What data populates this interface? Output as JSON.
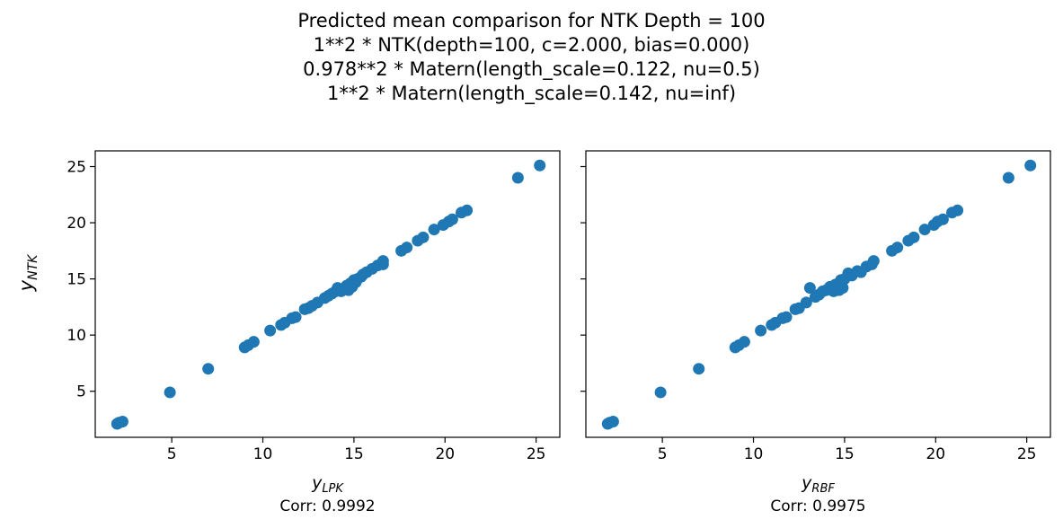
{
  "figure": {
    "title_lines": [
      "Predicted mean comparison for NTK Depth = 100",
      "1**2 * NTK(depth=100, c=2.000, bias=0.000)",
      "0.978**2 * Matern(length_scale=0.122, nu=0.5)",
      "1**2 * Matern(length_scale=0.142, nu=inf)"
    ],
    "ylabel_base": "y",
    "ylabel_sub": "NTK"
  },
  "chart_data": [
    {
      "type": "scatter",
      "xlabel_base": "y",
      "xlabel_sub": "LPK",
      "corr_label": "Corr: 0.9992",
      "xlim": [
        0.8,
        26.3
      ],
      "ylim": [
        0.9,
        26.4
      ],
      "xticks": [
        5,
        10,
        15,
        20,
        25
      ],
      "yticks": [
        5,
        10,
        15,
        20,
        25
      ],
      "color": "#1f77b4",
      "points": [
        [
          2.0,
          2.1
        ],
        [
          2.1,
          2.2
        ],
        [
          2.3,
          2.3
        ],
        [
          4.9,
          4.9
        ],
        [
          7.0,
          7.0
        ],
        [
          9.0,
          8.9
        ],
        [
          9.2,
          9.1
        ],
        [
          9.5,
          9.4
        ],
        [
          10.4,
          10.4
        ],
        [
          11.0,
          10.9
        ],
        [
          11.2,
          11.1
        ],
        [
          11.6,
          11.5
        ],
        [
          11.8,
          11.6
        ],
        [
          12.3,
          12.3
        ],
        [
          12.5,
          12.4
        ],
        [
          12.7,
          12.6
        ],
        [
          13.0,
          12.9
        ],
        [
          13.4,
          13.3
        ],
        [
          13.6,
          13.5
        ],
        [
          13.8,
          13.7
        ],
        [
          14.0,
          13.9
        ],
        [
          14.1,
          14.2
        ],
        [
          14.3,
          13.9
        ],
        [
          14.4,
          14.1
        ],
        [
          14.6,
          14.4
        ],
        [
          14.7,
          14.0
        ],
        [
          14.8,
          14.6
        ],
        [
          14.9,
          14.3
        ],
        [
          15.0,
          14.9
        ],
        [
          15.1,
          14.7
        ],
        [
          15.2,
          15.0
        ],
        [
          15.4,
          15.2
        ],
        [
          15.5,
          15.4
        ],
        [
          15.7,
          15.6
        ],
        [
          16.0,
          15.9
        ],
        [
          16.3,
          16.2
        ],
        [
          16.6,
          16.3
        ],
        [
          16.6,
          16.6
        ],
        [
          17.6,
          17.5
        ],
        [
          17.9,
          17.8
        ],
        [
          18.5,
          18.4
        ],
        [
          18.8,
          18.7
        ],
        [
          19.4,
          19.4
        ],
        [
          19.9,
          19.8
        ],
        [
          20.2,
          20.1
        ],
        [
          20.4,
          20.3
        ],
        [
          20.9,
          20.9
        ],
        [
          21.2,
          21.1
        ],
        [
          24.0,
          24.0
        ],
        [
          25.2,
          25.1
        ]
      ]
    },
    {
      "type": "scatter",
      "xlabel_base": "y",
      "xlabel_sub": "RBF",
      "corr_label": "Corr: 0.9975",
      "xlim": [
        0.8,
        26.3
      ],
      "ylim": [
        0.9,
        26.4
      ],
      "xticks": [
        5,
        10,
        15,
        20,
        25
      ],
      "yticks": [
        5,
        10,
        15,
        20,
        25
      ],
      "color": "#1f77b4",
      "points": [
        [
          2.0,
          2.1
        ],
        [
          2.1,
          2.2
        ],
        [
          2.3,
          2.3
        ],
        [
          4.9,
          4.9
        ],
        [
          7.0,
          7.0
        ],
        [
          9.0,
          8.9
        ],
        [
          9.2,
          9.1
        ],
        [
          9.5,
          9.4
        ],
        [
          10.4,
          10.4
        ],
        [
          11.0,
          10.9
        ],
        [
          11.2,
          11.1
        ],
        [
          11.6,
          11.5
        ],
        [
          11.8,
          11.6
        ],
        [
          12.3,
          12.3
        ],
        [
          12.5,
          12.4
        ],
        [
          12.9,
          12.9
        ],
        [
          13.1,
          14.2
        ],
        [
          13.4,
          13.4
        ],
        [
          13.6,
          13.6
        ],
        [
          13.8,
          13.9
        ],
        [
          14.0,
          14.0
        ],
        [
          14.2,
          14.3
        ],
        [
          14.4,
          13.9
        ],
        [
          14.5,
          14.5
        ],
        [
          14.7,
          14.0
        ],
        [
          14.8,
          14.9
        ],
        [
          14.9,
          14.2
        ],
        [
          15.0,
          15.0
        ],
        [
          15.2,
          15.5
        ],
        [
          15.4,
          15.3
        ],
        [
          15.7,
          15.7
        ],
        [
          15.9,
          15.6
        ],
        [
          16.2,
          16.1
        ],
        [
          16.5,
          16.3
        ],
        [
          16.6,
          16.6
        ],
        [
          17.6,
          17.5
        ],
        [
          17.9,
          17.8
        ],
        [
          18.5,
          18.4
        ],
        [
          18.8,
          18.7
        ],
        [
          19.4,
          19.4
        ],
        [
          19.9,
          19.8
        ],
        [
          20.1,
          20.1
        ],
        [
          20.4,
          20.3
        ],
        [
          20.9,
          20.9
        ],
        [
          21.2,
          21.1
        ],
        [
          24.0,
          24.0
        ],
        [
          25.2,
          25.1
        ]
      ]
    }
  ]
}
